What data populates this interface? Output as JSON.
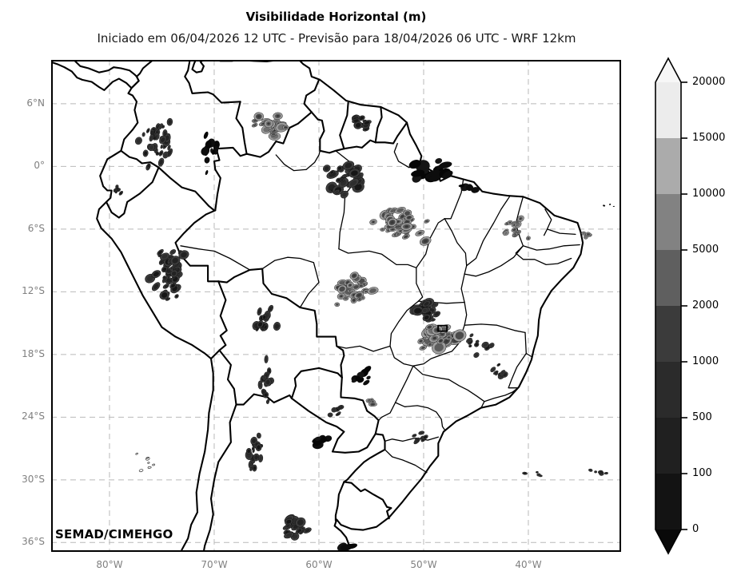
{
  "header": {
    "title": "Visibilidade Horizontal (m)",
    "subtitle": "Iniciado em 06/04/2026 12 UTC - Previsão para 18/04/2026 06 UTC - WRF 12km"
  },
  "watermark": "SEMAD/CIMEHGO",
  "axes": {
    "lat_ticks": [
      "6°N",
      "0°",
      "6°S",
      "12°S",
      "18°S",
      "24°S",
      "30°S",
      "36°S"
    ],
    "lat_values": [
      6,
      0,
      -6,
      -12,
      -18,
      -24,
      -30,
      -36
    ],
    "lon_ticks": [
      "80°W",
      "70°W",
      "60°W",
      "50°W",
      "40°W"
    ],
    "lon_values": [
      -80,
      -70,
      -60,
      -50,
      -40
    ]
  },
  "colorbar": {
    "tick_labels": [
      "20000",
      "15000",
      "10000",
      "5000",
      "2000",
      "1000",
      "500",
      "100",
      "0"
    ],
    "tick_values": [
      20000,
      15000,
      10000,
      5000,
      2000,
      1000,
      500,
      100,
      0
    ],
    "segment_colors": [
      "#ececec",
      "#ababab",
      "#828282",
      "#5f5f5f",
      "#3b3b3b",
      "#2b2b2b",
      "#202020",
      "#131313"
    ],
    "extend_over_color": "#f7f7f7",
    "extend_under_color": "#090909",
    "units": "m"
  },
  "chart_data": {
    "type": "contour-map",
    "variable": "Visibilidade Horizontal",
    "units": "m",
    "model": "WRF 12km",
    "init_time": "06/04/2026 12 UTC",
    "valid_time": "18/04/2026 06 UTC",
    "projection": "PlateCarree",
    "extent": {
      "lon_min": -85.6,
      "lon_max": -31.1,
      "lat_min": -37.3,
      "lat_max": 10.2
    },
    "levels_m": [
      0,
      100,
      500,
      1000,
      2000,
      5000,
      10000,
      15000,
      20000
    ],
    "station_marker": {
      "lon": -48.2,
      "lat": -15.5
    },
    "clusters": [
      {
        "name": "colombia-andes",
        "lon": -75.4,
        "lat": 2.6,
        "dlon": 2.2,
        "dlat": 3.4,
        "n": 40,
        "tone": "dark",
        "angle": -70,
        "rmin": 1.5,
        "rmax": 4.5
      },
      {
        "name": "colombia-venezuela-border",
        "lon": -70.4,
        "lat": 1.6,
        "dlon": 0.9,
        "dlat": 2.6,
        "n": 16,
        "tone": "black",
        "angle": -80,
        "rmin": 2,
        "rmax": 5
      },
      {
        "name": "southern-venezuela",
        "lon": -64.2,
        "lat": 3.9,
        "dlon": 2.6,
        "dlat": 1.2,
        "n": 22,
        "tone": "mid",
        "angle": -10,
        "rmin": 2,
        "rmax": 5.5
      },
      {
        "name": "guyana-roraima",
        "lon": -55.8,
        "lat": 4.3,
        "dlon": 2.0,
        "dlat": 1.0,
        "n": 13,
        "tone": "dark",
        "angle": -15,
        "rmin": 1.5,
        "rmax": 4.5
      },
      {
        "name": "rio-negro-amazonas",
        "lon": -57.4,
        "lat": -1.1,
        "dlon": 2.4,
        "dlat": 2.1,
        "n": 30,
        "tone": "dark",
        "angle": -30,
        "rmin": 2,
        "rmax": 6
      },
      {
        "name": "amazon-mouth",
        "lon": -49.2,
        "lat": -0.5,
        "dlon": 2.6,
        "dlat": 1.2,
        "n": 16,
        "tone": "black",
        "angle": -25,
        "rmin": 3,
        "rmax": 8
      },
      {
        "name": "maranhao-coast",
        "lon": -45.9,
        "lat": -1.9,
        "dlon": 1.6,
        "dlat": 0.5,
        "n": 7,
        "tone": "black",
        "angle": -15,
        "rmin": 2,
        "rmax": 5
      },
      {
        "name": "central-para",
        "lon": -52.6,
        "lat": -5.5,
        "dlon": 3.4,
        "dlat": 2.2,
        "n": 36,
        "tone": "mid",
        "angle": -20,
        "rmin": 2,
        "rmax": 5.5
      },
      {
        "name": "northeast-interior",
        "lon": -41.6,
        "lat": -5.8,
        "dlon": 2.2,
        "dlat": 1.6,
        "n": 14,
        "tone": "mid",
        "angle": -30,
        "rmin": 1.2,
        "rmax": 3.5
      },
      {
        "name": "east-edge-small",
        "lon": -34.4,
        "lat": -6.6,
        "dlon": 0.8,
        "dlat": 0.6,
        "n": 5,
        "tone": "mid",
        "angle": 0,
        "rmin": 1,
        "rmax": 2.5
      },
      {
        "name": "peru-andes",
        "lon": -74.3,
        "lat": -10.5,
        "dlon": 2.2,
        "dlat": 4.4,
        "n": 44,
        "tone": "dark",
        "angle": -40,
        "rmin": 1.5,
        "rmax": 5
      },
      {
        "name": "ecuador-coast",
        "lon": -79.3,
        "lat": -2.3,
        "dlon": 0.7,
        "dlat": 1.0,
        "n": 6,
        "tone": "dark",
        "angle": -60,
        "rmin": 1.2,
        "rmax": 3
      },
      {
        "name": "mato-grosso",
        "lon": -56.9,
        "lat": -11.9,
        "dlon": 3.0,
        "dlat": 2.0,
        "n": 28,
        "tone": "mid",
        "angle": -15,
        "rmin": 2,
        "rmax": 5.5
      },
      {
        "name": "tocantins-goias",
        "lon": -49.4,
        "lat": -13.8,
        "dlon": 2.2,
        "dlat": 1.6,
        "n": 20,
        "tone": "dark",
        "angle": -20,
        "rmin": 2,
        "rmax": 6
      },
      {
        "name": "goias-df",
        "lon": -48.6,
        "lat": -16.2,
        "dlon": 2.4,
        "dlat": 1.8,
        "n": 30,
        "tone": "mid",
        "angle": -25,
        "rmin": 2.5,
        "rmax": 6.5
      },
      {
        "name": "minas-gerais",
        "lon": -44.6,
        "lat": -16.9,
        "dlon": 1.8,
        "dlat": 1.6,
        "n": 10,
        "tone": "dark",
        "angle": -30,
        "rmin": 1.2,
        "rmax": 3.5
      },
      {
        "name": "rio-doce",
        "lon": -42.6,
        "lat": -20.0,
        "dlon": 1.4,
        "dlat": 1.2,
        "n": 8,
        "tone": "dark",
        "angle": -40,
        "rmin": 1.2,
        "rmax": 3.5
      },
      {
        "name": "bolivia-altiplano",
        "lon": -65.3,
        "lat": -14.6,
        "dlon": 1.6,
        "dlat": 2.0,
        "n": 14,
        "tone": "dark",
        "angle": -70,
        "rmin": 1.5,
        "rmax": 4.5
      },
      {
        "name": "bolivia-chaco",
        "lon": -64.9,
        "lat": -20.7,
        "dlon": 1.3,
        "dlat": 2.6,
        "n": 18,
        "tone": "dark",
        "angle": -80,
        "rmin": 1.5,
        "rmax": 4.5
      },
      {
        "name": "pantanal",
        "lon": -55.8,
        "lat": -20.0,
        "dlon": 1.3,
        "dlat": 1.1,
        "n": 10,
        "tone": "black",
        "angle": -30,
        "rmin": 2,
        "rmax": 5.5
      },
      {
        "name": "paraguay-east",
        "lon": -57.9,
        "lat": -23.6,
        "dlon": 1.5,
        "dlat": 1.1,
        "n": 8,
        "tone": "dark",
        "angle": -20,
        "rmin": 1.2,
        "rmax": 3.5
      },
      {
        "name": "corrientes",
        "lon": -59.7,
        "lat": -26.2,
        "dlon": 1.1,
        "dlat": 0.8,
        "n": 9,
        "tone": "black",
        "angle": -20,
        "rmin": 2.5,
        "rmax": 6.5
      },
      {
        "name": "parana-coast",
        "lon": -50.2,
        "lat": -26.0,
        "dlon": 1.1,
        "dlat": 1.0,
        "n": 7,
        "tone": "dark",
        "angle": -30,
        "rmin": 1.2,
        "rmax": 3.5
      },
      {
        "name": "ms-sp-border",
        "lon": -55.0,
        "lat": -22.6,
        "dlon": 0.8,
        "dlat": 0.6,
        "n": 5,
        "tone": "mid",
        "angle": 0,
        "rmin": 1.5,
        "rmax": 4
      },
      {
        "name": "nw-argentina",
        "lon": -66.1,
        "lat": -27.2,
        "dlon": 0.9,
        "dlat": 3.0,
        "n": 18,
        "tone": "dark",
        "angle": -85,
        "rmin": 1.5,
        "rmax": 4.5
      },
      {
        "name": "pampas",
        "lon": -62.4,
        "lat": -34.4,
        "dlon": 2.3,
        "dlat": 1.5,
        "n": 22,
        "tone": "dark",
        "angle": -30,
        "rmin": 2,
        "rmax": 5.5
      },
      {
        "name": "buenos-aires-coast",
        "lon": -57.3,
        "lat": -36.5,
        "dlon": 1.0,
        "dlat": 0.5,
        "n": 6,
        "tone": "black",
        "angle": -20,
        "rmin": 2.5,
        "rmax": 6
      },
      {
        "name": "pacific-offshore",
        "lon": -76.6,
        "lat": -28.2,
        "dlon": 2.2,
        "dlat": 1.4,
        "n": 7,
        "tone": "outline",
        "angle": -20,
        "rmin": 1,
        "rmax": 2.5
      },
      {
        "name": "atlantic-offshore-1",
        "lon": -39.6,
        "lat": -29.4,
        "dlon": 1.1,
        "dlat": 0.5,
        "n": 4,
        "tone": "dark",
        "angle": 0,
        "rmin": 1,
        "rmax": 2.5
      },
      {
        "name": "atlantic-offshore-2",
        "lon": -33.3,
        "lat": -29.2,
        "dlon": 1.5,
        "dlat": 0.5,
        "n": 6,
        "tone": "dark",
        "angle": 0,
        "rmin": 1.2,
        "rmax": 3
      },
      {
        "name": "ne-offshore-dots",
        "lon": -32.9,
        "lat": -3.7,
        "dlon": 1.2,
        "dlat": 0.3,
        "n": 3,
        "tone": "black",
        "angle": 0,
        "rmin": 0.8,
        "rmax": 1.6
      }
    ]
  }
}
